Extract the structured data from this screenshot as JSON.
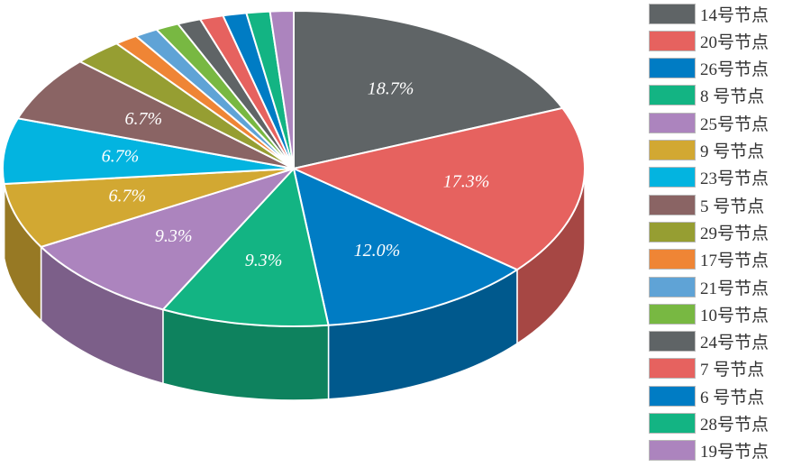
{
  "chart_data": {
    "type": "pie",
    "style": "3d",
    "categories": [
      "14号节点",
      "20号节点",
      "26号节点",
      "8 号节点",
      "25号节点",
      "9 号节点",
      "23号节点",
      "5 号节点",
      "29号节点",
      "17号节点",
      "21号节点",
      "10号节点",
      "24号节点",
      "7 号节点",
      "6 号节点",
      "28号节点",
      "19号节点"
    ],
    "values": [
      18.7,
      17.3,
      12.0,
      9.3,
      9.3,
      6.7,
      6.7,
      6.7,
      2.7,
      1.3,
      1.3,
      1.3,
      1.3,
      1.3,
      1.3,
      1.3,
      1.3
    ],
    "data_labels": [
      "18.7%",
      "17.3%",
      "12.0%",
      "9.3%",
      "9.3%",
      "6.7%",
      "6.7%",
      "6.7%",
      "",
      "",
      "",
      "",
      "",
      "",
      "",
      "",
      ""
    ],
    "colors": [
      "#5f6466",
      "#e6625f",
      "#007cc4",
      "#13b483",
      "#ac84be",
      "#d2a832",
      "#03b4e0",
      "#8a6464",
      "#969e32",
      "#ef8535",
      "#5fa3d6",
      "#78b842",
      "#5f6466",
      "#e6625f",
      "#007cc4",
      "#13b483",
      "#ac84be"
    ],
    "legend_position": "right"
  }
}
